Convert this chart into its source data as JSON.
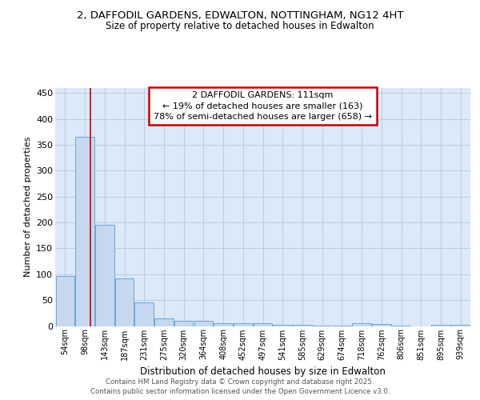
{
  "title_line1": "2, DAFFODIL GARDENS, EDWALTON, NOTTINGHAM, NG12 4HT",
  "title_line2": "Size of property relative to detached houses in Edwalton",
  "xlabel": "Distribution of detached houses by size in Edwalton",
  "ylabel": "Number of detached properties",
  "bar_color": "#c5d8f0",
  "bar_edge_color": "#5a9fd4",
  "fig_background_color": "#ffffff",
  "plot_bg_color": "#dce9f8",
  "grid_color": "#b8cfe8",
  "categories": [
    "54sqm",
    "98sqm",
    "143sqm",
    "187sqm",
    "231sqm",
    "275sqm",
    "320sqm",
    "364sqm",
    "408sqm",
    "452sqm",
    "497sqm",
    "541sqm",
    "585sqm",
    "629sqm",
    "674sqm",
    "718sqm",
    "762sqm",
    "806sqm",
    "851sqm",
    "895sqm",
    "939sqm"
  ],
  "values": [
    97,
    365,
    195,
    92,
    45,
    14,
    10,
    10,
    6,
    5,
    5,
    2,
    2,
    1,
    1,
    5,
    4,
    1,
    0,
    2,
    3
  ],
  "red_line_x": 1.3,
  "annotation_text": "2 DAFFODIL GARDENS: 111sqm\n← 19% of detached houses are smaller (163)\n78% of semi-detached houses are larger (658) →",
  "annotation_box_color": "#ffffff",
  "annotation_box_edge_color": "#cc0000",
  "red_line_color": "#cc0000",
  "ylim": [
    0,
    460
  ],
  "footer_text": "Contains HM Land Registry data © Crown copyright and database right 2025.\nContains public sector information licensed under the Open Government Licence v3.0."
}
